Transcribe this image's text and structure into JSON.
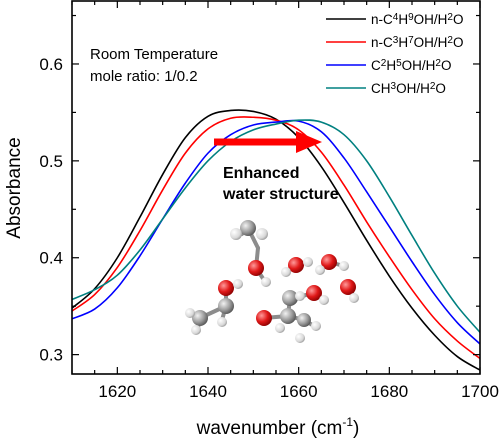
{
  "chart_data": {
    "type": "line",
    "xlabel": "wavenumber (cm",
    "xlabel_sup": "-1",
    "xlabel_close": ")",
    "ylabel": "Absorbance",
    "xlim": [
      1610,
      1700
    ],
    "ylim": [
      0.28,
      0.665
    ],
    "x_ticks": [
      1620,
      1640,
      1660,
      1680,
      1700
    ],
    "y_ticks": [
      0.3,
      0.4,
      0.5,
      0.6
    ],
    "y_tick_labels": [
      "0.3",
      "0.4",
      "0.5",
      "0.6"
    ],
    "grid": false,
    "legend_position": "top-right",
    "annotations": {
      "conditions_line1": "Room Temperature",
      "conditions_line2": "mole ratio: 1/0.2",
      "arrow_label_line1": "Enhanced",
      "arrow_label_line2": "water structure"
    },
    "series": [
      {
        "name": "n-C4H9OH/H2O",
        "legend_parts": [
          "n-C",
          "4",
          "H",
          "9",
          "OH/H",
          "2",
          "O"
        ],
        "color": "#000000",
        "x": [
          1610,
          1615,
          1620,
          1625,
          1630,
          1635,
          1640,
          1645,
          1650,
          1655,
          1660,
          1665,
          1670,
          1675,
          1680,
          1685,
          1690,
          1695,
          1700
        ],
        "y": [
          0.348,
          0.368,
          0.4,
          0.442,
          0.486,
          0.524,
          0.546,
          0.552,
          0.551,
          0.543,
          0.524,
          0.494,
          0.457,
          0.418,
          0.381,
          0.348,
          0.32,
          0.298,
          0.284
        ]
      },
      {
        "name": "n-C3H7OH/H2O",
        "legend_parts": [
          "n-C",
          "3",
          "H",
          "7",
          "OH/H",
          "2",
          "O"
        ],
        "color": "#ff0000",
        "x": [
          1610,
          1615,
          1620,
          1625,
          1630,
          1635,
          1640,
          1645,
          1650,
          1655,
          1660,
          1665,
          1670,
          1675,
          1680,
          1685,
          1690,
          1695,
          1700
        ],
        "y": [
          0.345,
          0.362,
          0.39,
          0.428,
          0.47,
          0.508,
          0.533,
          0.544,
          0.545,
          0.542,
          0.532,
          0.509,
          0.475,
          0.437,
          0.401,
          0.367,
          0.337,
          0.314,
          0.296
        ]
      },
      {
        "name": "C2H5OH/H2O",
        "legend_parts": [
          "C",
          "2",
          "H",
          "5",
          "OH/H",
          "2",
          "O"
        ],
        "color": "#0000ff",
        "x": [
          1610,
          1615,
          1620,
          1625,
          1630,
          1635,
          1640,
          1645,
          1650,
          1655,
          1660,
          1665,
          1670,
          1675,
          1680,
          1685,
          1690,
          1695,
          1700
        ],
        "y": [
          0.337,
          0.347,
          0.369,
          0.402,
          0.44,
          0.477,
          0.508,
          0.527,
          0.537,
          0.54,
          0.541,
          0.53,
          0.503,
          0.468,
          0.432,
          0.396,
          0.362,
          0.333,
          0.311
        ]
      },
      {
        "name": "CH3OH/H2O",
        "legend_parts": [
          "CH",
          "3",
          "OH/H",
          "2",
          "O"
        ],
        "color": "#008080",
        "x": [
          1610,
          1615,
          1620,
          1625,
          1630,
          1635,
          1640,
          1645,
          1650,
          1655,
          1660,
          1665,
          1670,
          1675,
          1680,
          1685,
          1690,
          1695,
          1700
        ],
        "y": [
          0.357,
          0.367,
          0.382,
          0.408,
          0.44,
          0.472,
          0.5,
          0.52,
          0.532,
          0.538,
          0.542,
          0.54,
          0.527,
          0.5,
          0.463,
          0.423,
          0.384,
          0.35,
          0.323
        ]
      }
    ]
  }
}
